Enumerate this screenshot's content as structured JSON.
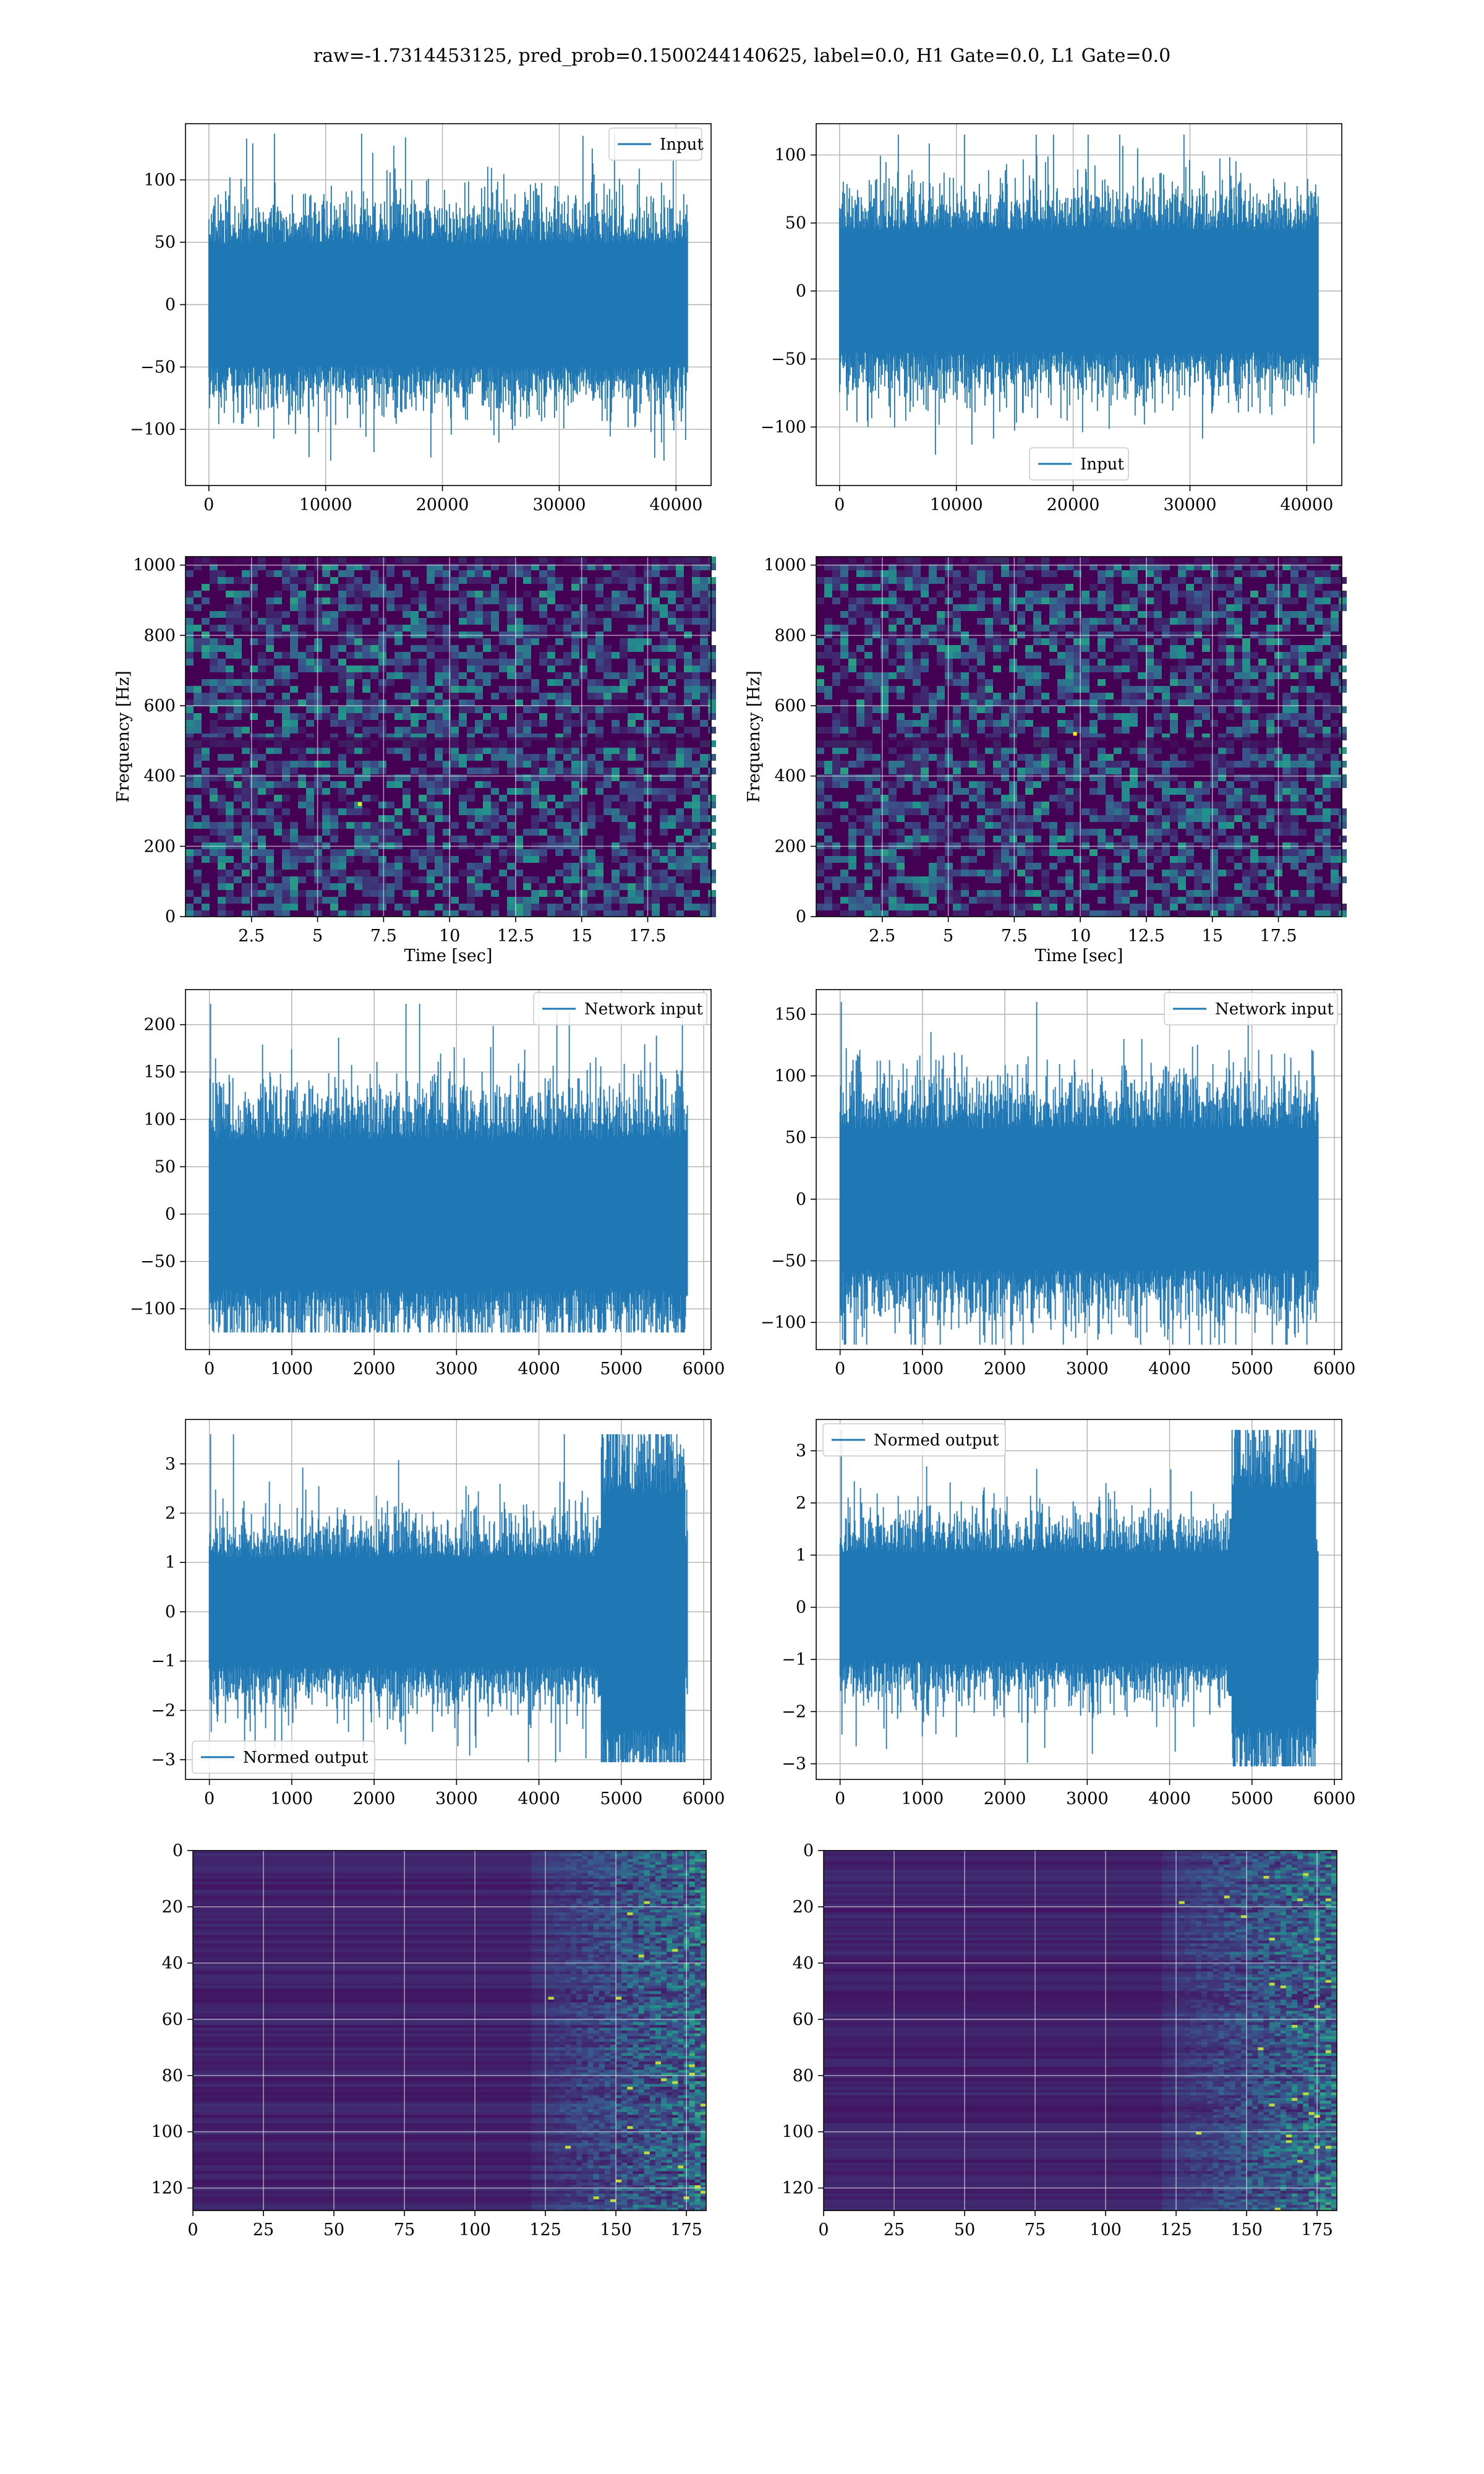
{
  "figure": {
    "suptitle": "raw=-1.7314453125, pred_prob=0.1500244140625, label=0.0, H1 Gate=0.0, L1 Gate=0.0"
  },
  "colors": {
    "series": "#1f77b4",
    "grid": "#b0b0b0",
    "viridis_dark": "#440154"
  },
  "chart_data": [
    {
      "id": "input-h1",
      "type": "line",
      "title": "",
      "xlabel": "",
      "ylabel": "",
      "series": [
        {
          "name": "Input"
        }
      ],
      "legend": "upper right",
      "xlim": [
        -2000,
        43000
      ],
      "ylim": [
        -145,
        145
      ],
      "xticks": [
        0,
        10000,
        20000,
        30000,
        40000
      ],
      "yticks": [
        -100,
        -50,
        0,
        50,
        100
      ],
      "n_samples": 40960,
      "amplitude_range": [
        -125,
        137
      ],
      "grid": true
    },
    {
      "id": "input-l1",
      "type": "line",
      "title": "",
      "xlabel": "",
      "ylabel": "",
      "series": [
        {
          "name": "Input"
        }
      ],
      "legend": "lower center",
      "xlim": [
        -2000,
        43000
      ],
      "ylim": [
        -143,
        123
      ],
      "xticks": [
        0,
        10000,
        20000,
        30000,
        40000
      ],
      "yticks": [
        -100,
        -50,
        0,
        50,
        100
      ],
      "n_samples": 40960,
      "amplitude_range": [
        -125,
        115
      ],
      "grid": true
    },
    {
      "id": "spec-h1",
      "type": "heatmap",
      "title": "",
      "xlabel": "Time [sec]",
      "ylabel": "Frequency [Hz]",
      "xlim": [
        0,
        19.9
      ],
      "ylim": [
        0,
        1024
      ],
      "xticks": [
        2.5,
        5.0,
        7.5,
        10.0,
        12.5,
        15.0,
        17.5
      ],
      "yticks": [
        0,
        200,
        400,
        600,
        800,
        1000
      ],
      "colormap": "viridis",
      "grid": true
    },
    {
      "id": "spec-l1",
      "type": "heatmap",
      "title": "",
      "xlabel": "Time [sec]",
      "ylabel": "Frequency [Hz]",
      "xlim": [
        0,
        19.9
      ],
      "ylim": [
        0,
        1024
      ],
      "xticks": [
        2.5,
        5.0,
        7.5,
        10.0,
        12.5,
        15.0,
        17.5
      ],
      "yticks": [
        0,
        200,
        400,
        600,
        800,
        1000
      ],
      "colormap": "viridis",
      "grid": true
    },
    {
      "id": "net-h1",
      "type": "line",
      "title": "",
      "xlabel": "",
      "ylabel": "",
      "series": [
        {
          "name": "Network input"
        }
      ],
      "legend": "upper right",
      "xlim": [
        -290,
        6090
      ],
      "ylim": [
        -143,
        237
      ],
      "xticks": [
        0,
        1000,
        2000,
        3000,
        4000,
        5000,
        6000
      ],
      "yticks": [
        -100,
        -50,
        0,
        50,
        100,
        150,
        200
      ],
      "n_samples": 5800,
      "amplitude_range": [
        -125,
        222
      ],
      "grid": true
    },
    {
      "id": "net-l1",
      "type": "line",
      "title": "",
      "xlabel": "",
      "ylabel": "",
      "series": [
        {
          "name": "Network input"
        }
      ],
      "legend": "upper right",
      "xlim": [
        -290,
        6090
      ],
      "ylim": [
        -122,
        170
      ],
      "xticks": [
        0,
        1000,
        2000,
        3000,
        4000,
        5000,
        6000
      ],
      "yticks": [
        -100,
        -50,
        0,
        50,
        100,
        150
      ],
      "n_samples": 5800,
      "amplitude_range": [
        -118,
        160
      ],
      "grid": true
    },
    {
      "id": "norm-h1",
      "type": "line",
      "title": "",
      "xlabel": "",
      "ylabel": "",
      "series": [
        {
          "name": "Normed output"
        }
      ],
      "legend": "lower left",
      "xlim": [
        -290,
        6090
      ],
      "ylim": [
        -3.4,
        3.9
      ],
      "xticks": [
        0,
        1000,
        2000,
        3000,
        4000,
        5000,
        6000
      ],
      "yticks": [
        -3,
        -2,
        -1,
        0,
        1,
        2,
        3
      ],
      "n_samples": 5800,
      "amplitude_range": [
        -3.05,
        3.6
      ],
      "grid": true
    },
    {
      "id": "norm-l1",
      "type": "line",
      "title": "",
      "xlabel": "",
      "ylabel": "",
      "series": [
        {
          "name": "Normed output"
        }
      ],
      "legend": "upper left",
      "xlim": [
        -290,
        6090
      ],
      "ylim": [
        -3.3,
        3.6
      ],
      "xticks": [
        0,
        1000,
        2000,
        3000,
        4000,
        5000,
        6000
      ],
      "yticks": [
        -3,
        -2,
        -1,
        0,
        1,
        2,
        3
      ],
      "n_samples": 5800,
      "amplitude_range": [
        -3.05,
        3.4
      ],
      "grid": true
    },
    {
      "id": "feat-h1",
      "type": "heatmap",
      "title": "",
      "xlabel": "",
      "ylabel": "",
      "xlim": [
        0,
        182
      ],
      "ylim": [
        128,
        0
      ],
      "xticks": [
        0,
        25,
        50,
        75,
        100,
        125,
        150,
        175
      ],
      "yticks": [
        0,
        20,
        40,
        60,
        80,
        100,
        120
      ],
      "colormap": "viridis",
      "grid": true
    },
    {
      "id": "feat-l1",
      "type": "heatmap",
      "title": "",
      "xlabel": "",
      "ylabel": "",
      "xlim": [
        0,
        182
      ],
      "ylim": [
        128,
        0
      ],
      "xticks": [
        0,
        25,
        50,
        75,
        100,
        125,
        150,
        175
      ],
      "yticks": [
        0,
        20,
        40,
        60,
        80,
        100,
        120
      ],
      "colormap": "viridis",
      "grid": true
    }
  ]
}
